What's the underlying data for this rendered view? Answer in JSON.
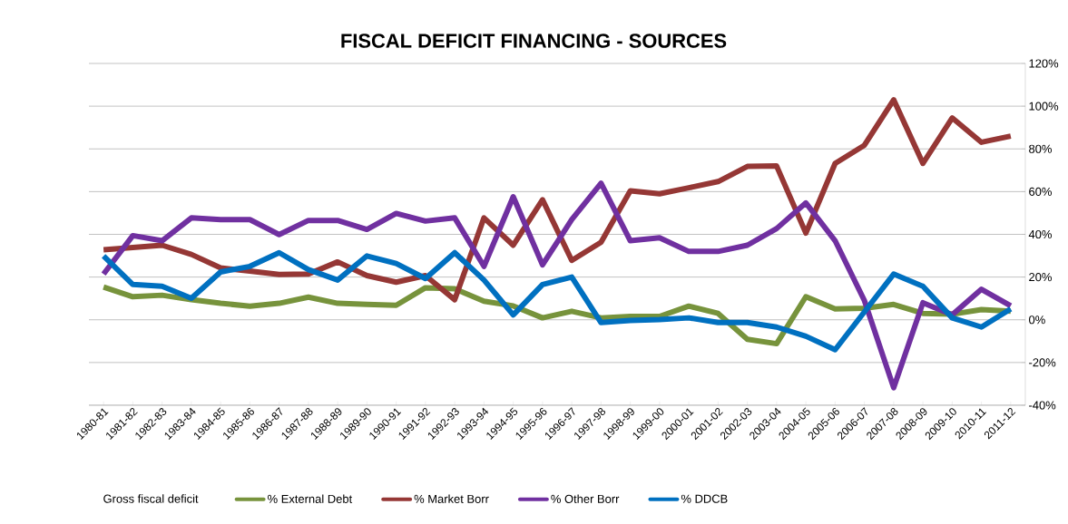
{
  "chart_data": {
    "type": "line",
    "title": "FISCAL DEFICIT FINANCING - SOURCES",
    "categories": [
      "1980-81",
      "1981-82",
      "1982-83",
      "1983-84",
      "1984-85",
      "1985-86",
      "1986-87",
      "1987-88",
      "1988-89",
      "1989-90",
      "1990-91",
      "1991-92",
      "1992-93",
      "1993-94",
      "1994-95",
      "1995-96",
      "1996-97",
      "1997-98",
      "1998-99",
      "1999-00",
      "2000-01",
      "2001-02",
      "2002-03",
      "2003-04",
      "2004-05",
      "2005-06",
      "2006-07",
      "2007-08",
      "2008-09",
      "2009-10",
      "2010-11",
      "2011-12"
    ],
    "series": [
      {
        "name": "% External Debt",
        "color": "#77933c",
        "values": [
          15.3,
          10.8,
          11.5,
          9.4,
          7.7,
          6.4,
          7.7,
          10.6,
          7.7,
          7.2,
          6.8,
          15.0,
          14.5,
          8.7,
          6.5,
          0.9,
          4.0,
          0.9,
          1.6,
          1.6,
          6.4,
          3.0,
          -9.1,
          -11.2,
          10.8,
          5.1,
          5.4,
          7.2,
          3.0,
          2.6,
          4.8,
          4.0
        ]
      },
      {
        "name": "% Market Borr",
        "color": "#953735",
        "values": [
          32.8,
          33.8,
          34.9,
          30.6,
          24.3,
          22.8,
          21.2,
          21.4,
          27.1,
          20.7,
          17.6,
          20.7,
          9.4,
          47.7,
          34.9,
          56.2,
          27.8,
          36.3,
          60.4,
          59.0,
          61.8,
          64.7,
          71.8,
          72.0,
          40.6,
          73.2,
          81.7,
          103,
          73.2,
          94.5,
          83.1,
          86.0
        ]
      },
      {
        "name": "% Other Borr",
        "color": "#7030a0",
        "values": [
          21.4,
          39.4,
          37.0,
          47.7,
          46.9,
          46.9,
          39.9,
          46.5,
          46.5,
          42.3,
          49.8,
          46.2,
          47.7,
          25.0,
          57.6,
          25.7,
          46.9,
          63.9,
          37.0,
          38.4,
          32.0,
          32.0,
          34.9,
          42.7,
          54.7,
          37.0,
          9.0,
          -31.8,
          8.0,
          2.3,
          14.3,
          6.5
        ]
      },
      {
        "name": "% DDCB",
        "color": "#0070c0",
        "values": [
          29.9,
          16.5,
          15.7,
          10.1,
          22.4,
          25.0,
          31.4,
          23.5,
          18.6,
          29.9,
          26.4,
          19.3,
          31.4,
          18.6,
          2.3,
          16.5,
          20.0,
          -1.3,
          -0.3,
          0.1,
          0.9,
          -1.3,
          -1.3,
          -3.4,
          -7.7,
          -14.0,
          3.7,
          21.4,
          15.7,
          0.9,
          -3.4,
          5.1
        ]
      }
    ],
    "ylim": [
      -40,
      120
    ],
    "yticks": [
      {
        "value": -40,
        "label": "-40%"
      },
      {
        "value": -20,
        "label": "-20%"
      },
      {
        "value": 0,
        "label": "0%"
      },
      {
        "value": 20,
        "label": "20%"
      },
      {
        "value": 40,
        "label": "40%"
      },
      {
        "value": 60,
        "label": "60%"
      },
      {
        "value": 80,
        "label": "80%"
      },
      {
        "value": 100,
        "label": "100%"
      },
      {
        "value": 120,
        "label": "120%"
      }
    ],
    "grid": "y",
    "legend": "bottom",
    "annotations": [
      "Gross fiscal deficit"
    ]
  }
}
